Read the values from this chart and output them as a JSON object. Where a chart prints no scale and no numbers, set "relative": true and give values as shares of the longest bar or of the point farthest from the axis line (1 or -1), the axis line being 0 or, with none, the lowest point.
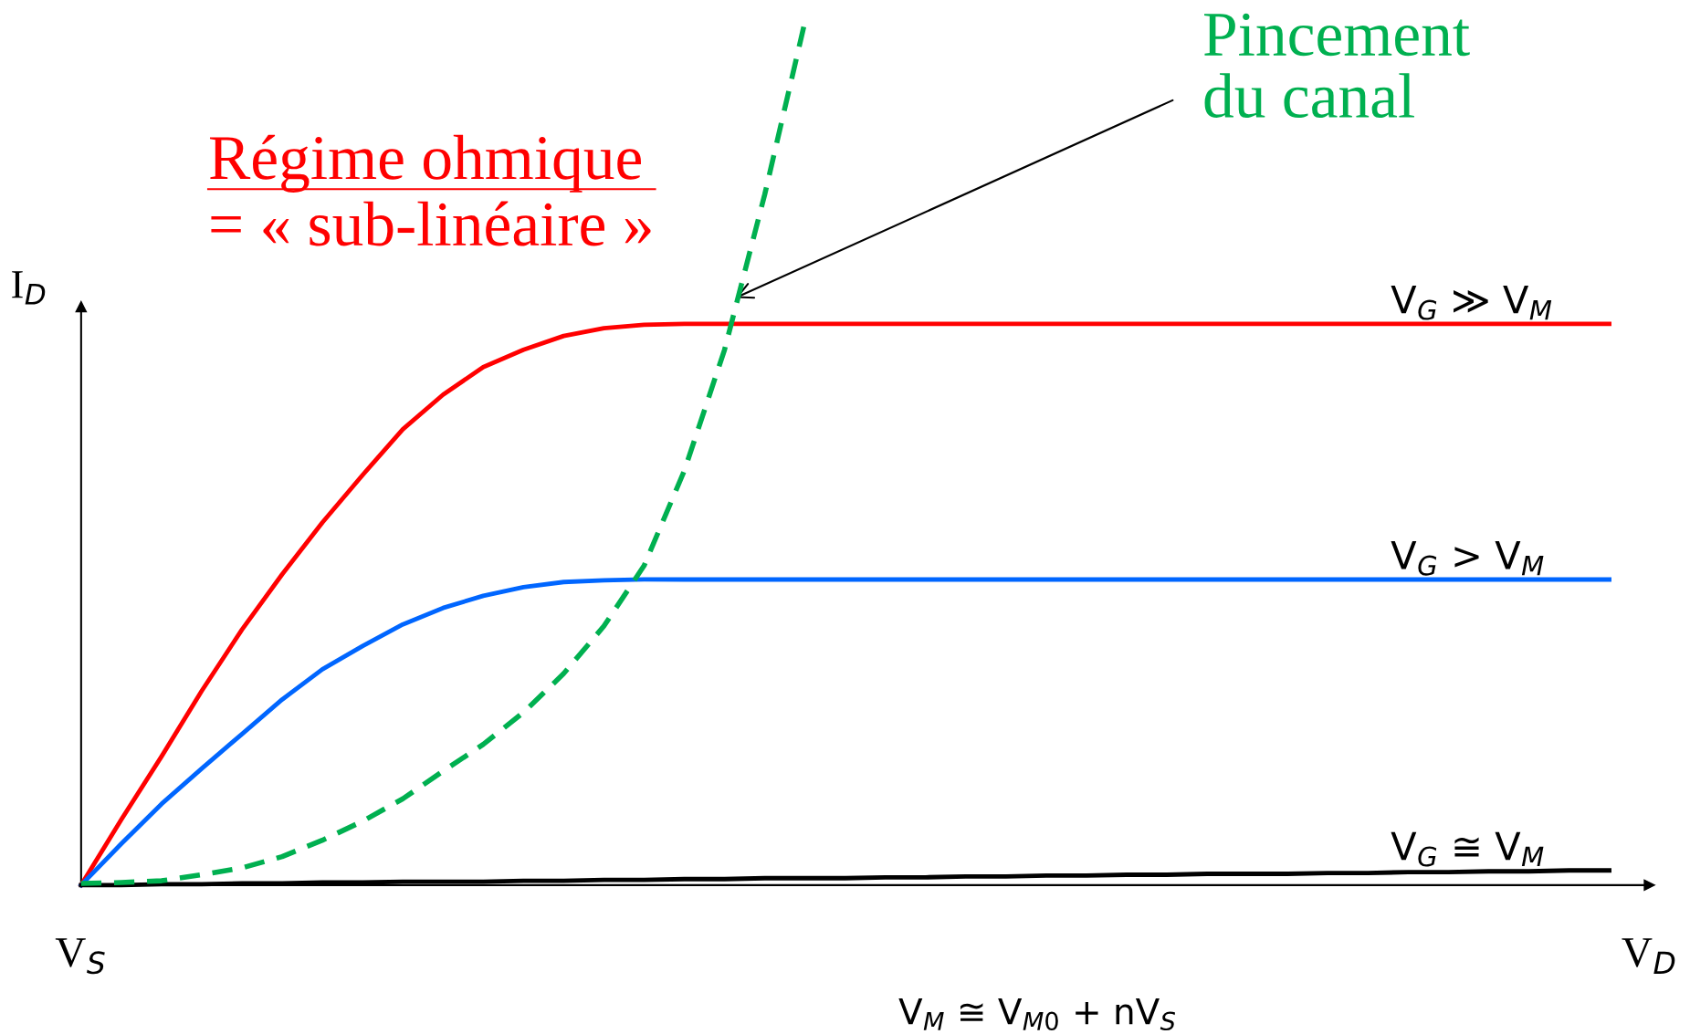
{
  "chart_data": {
    "type": "line",
    "relative": true,
    "ylabel": "I$_{D}$",
    "categories": [
      null,
      null,
      null,
      null,
      null,
      null,
      null,
      null,
      null,
      null,
      null,
      null,
      null,
      null,
      null,
      null,
      null,
      null,
      null,
      null,
      null,
      null,
      null,
      null,
      null,
      null,
      null,
      null,
      null,
      null,
      null,
      null,
      null,
      null,
      null,
      null,
      null,
      null,
      null
    ],
    "series": [
      {
        "name": "V$_{G}$ ≫ V$_{M}$",
        "color": "#ff0000",
        "line_style": "solid",
        "values": [
          0,
          0.076,
          0.149,
          0.225,
          0.296,
          0.36,
          0.42,
          0.475,
          0.528,
          0.568,
          0.6,
          0.62,
          0.636,
          0.645,
          0.649,
          0.65,
          0.65,
          0.65,
          0.65,
          0.65,
          0.65,
          0.65,
          0.65,
          0.65,
          0.65,
          0.65,
          0.65,
          0.65,
          0.65,
          0.65,
          0.65,
          0.65,
          0.65,
          0.65,
          0.65,
          0.65,
          0.65,
          0.65,
          0.65
        ]
      },
      {
        "name": "V$_{G}$ > V$_{M}$",
        "color": "#0066ff",
        "line_style": "solid",
        "values": [
          0,
          0.048,
          0.094,
          0.135,
          0.175,
          0.215,
          0.25,
          0.277,
          0.302,
          0.321,
          0.335,
          0.345,
          0.351,
          0.353,
          0.354,
          0.354,
          0.354,
          0.354,
          0.354,
          0.354,
          0.354,
          0.354,
          0.354,
          0.354,
          0.354,
          0.354,
          0.354,
          0.354,
          0.354,
          0.354,
          0.354,
          0.354,
          0.354,
          0.354,
          0.354,
          0.354,
          0.354,
          0.354,
          0.354
        ]
      },
      {
        "name": "V$_{G}$ ≅ V$_{M}$",
        "color": "#000000",
        "line_style": "solid",
        "values": [
          0,
          0,
          0.001,
          0.001,
          0.002,
          0.002,
          0.003,
          0.003,
          0.004,
          0.004,
          0.004,
          0.005,
          0.005,
          0.006,
          0.006,
          0.007,
          0.007,
          0.008,
          0.008,
          0.008,
          0.009,
          0.009,
          0.01,
          0.01,
          0.011,
          0.011,
          0.012,
          0.012,
          0.013,
          0.013,
          0.013,
          0.014,
          0.014,
          0.015,
          0.015,
          0.016,
          0.016,
          0.017,
          0.017
        ]
      },
      {
        "color": "#00b050",
        "line_style": "dashed",
        "values": [
          0.002,
          0.003,
          0.005,
          0.012,
          0.02,
          0.033,
          0.052,
          0.074,
          0.1,
          0.132,
          0.163,
          0.2,
          0.245,
          0.3,
          0.37,
          0.48,
          0.62,
          0.8,
          1.0,
          null,
          null,
          null,
          null,
          null,
          null,
          null,
          null,
          null,
          null,
          null,
          null,
          null,
          null,
          null,
          null,
          null,
          null,
          null,
          null
        ]
      }
    ],
    "annotations": [
      "Régime ohmique \n= « sub-linéaire »",
      "Pincement\ndu canal",
      "V$_{S}$",
      "V$_{D}$",
      "V$_{M}$ ≅ V$_{M0}$ + nV$_{S}$"
    ]
  }
}
